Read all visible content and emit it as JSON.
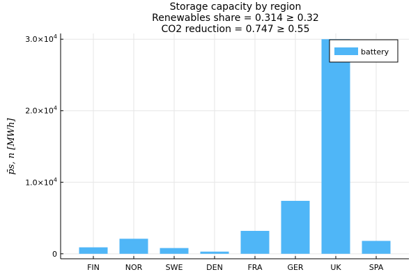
{
  "chart_data": {
    "type": "bar",
    "title_lines": [
      "Storage capacity by region",
      "Renewables share = 0.314 ≥ 0.32",
      "CO2 reduction = 0.747 ≥ 0.55"
    ],
    "xlabel": "",
    "ylabel": "p̄s, n [MWh]",
    "categories": [
      "FIN",
      "NOR",
      "SWE",
      "DEN",
      "FRA",
      "GER",
      "UK",
      "SPA"
    ],
    "series": [
      {
        "name": "battery",
        "values": [
          900,
          2100,
          800,
          300,
          3200,
          7400,
          30000,
          1800
        ],
        "color": "#4fb6f7"
      }
    ],
    "ylim": [
      -700,
      30800
    ],
    "y_ticks": [
      {
        "value": 0,
        "label": "0"
      },
      {
        "value": 10000,
        "label": "1.0×10",
        "exp": "4"
      },
      {
        "value": 20000,
        "label": "2.0×10",
        "exp": "4"
      },
      {
        "value": 30000,
        "label": "3.0×10",
        "exp": "4"
      }
    ],
    "grid": true,
    "legend_position": "top-right"
  }
}
